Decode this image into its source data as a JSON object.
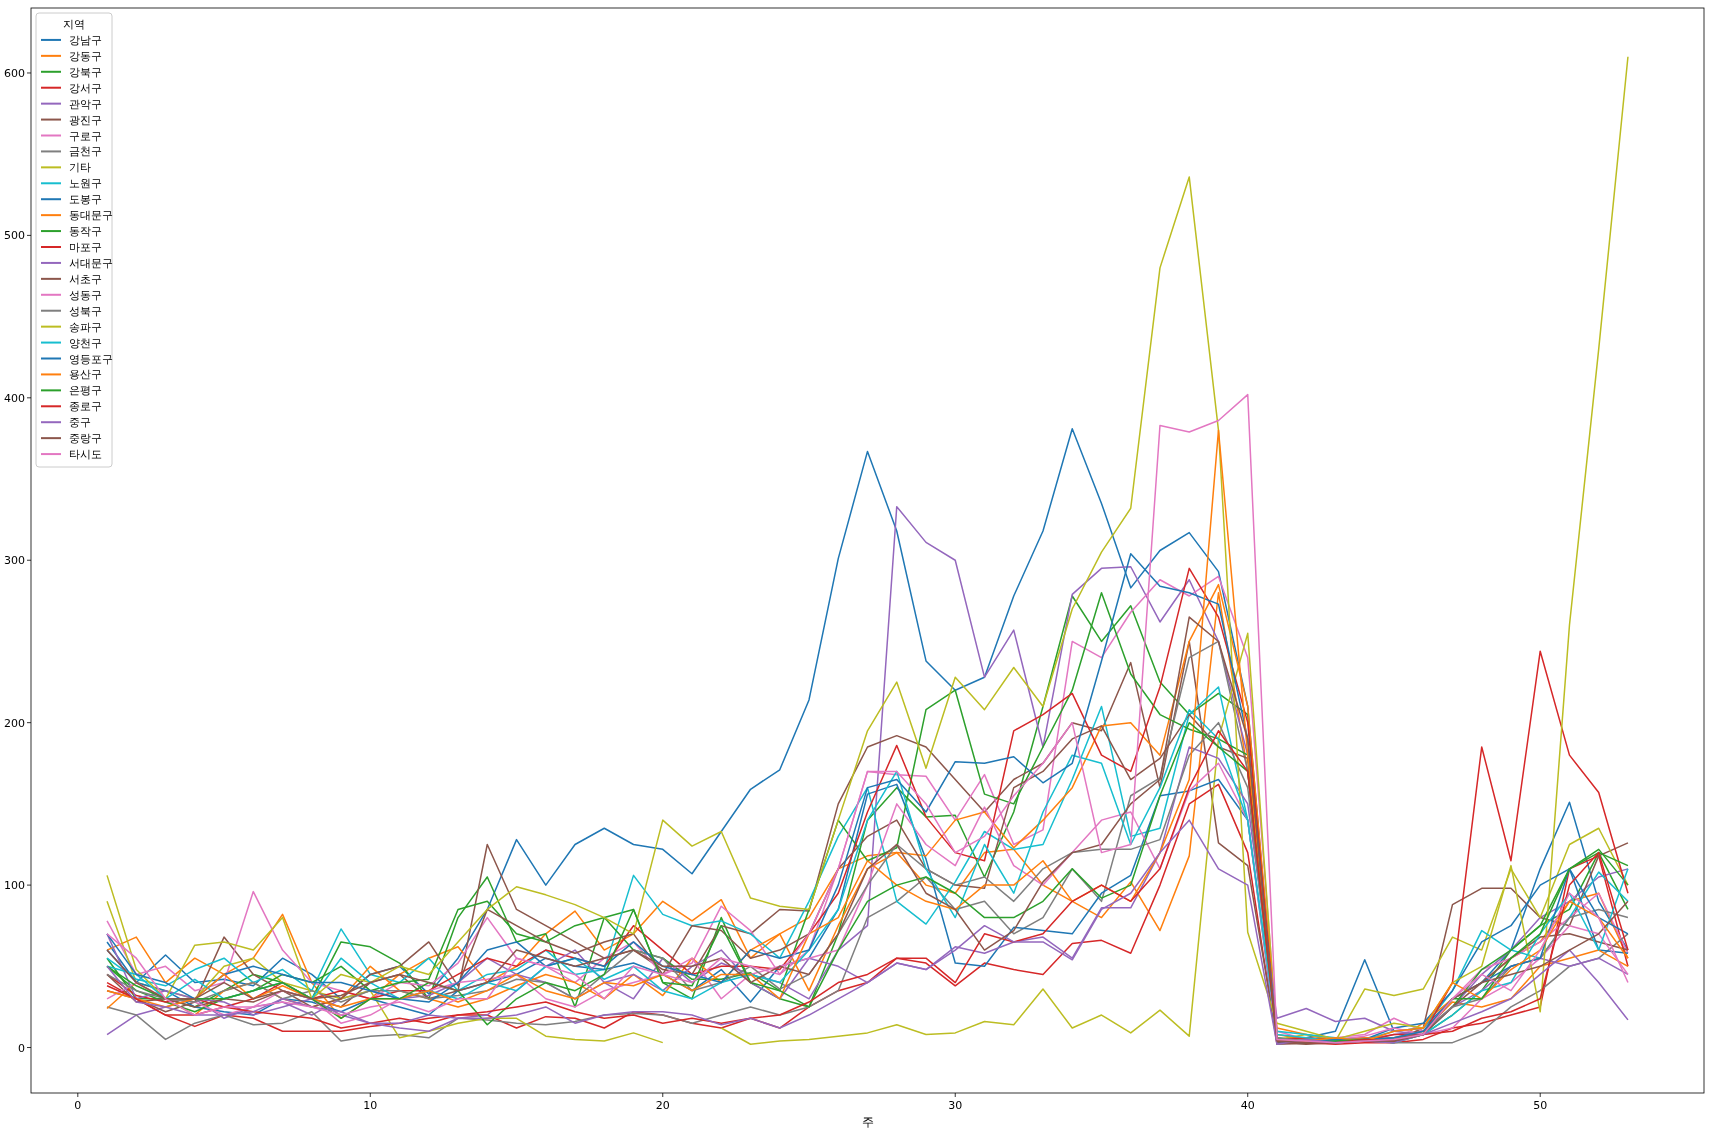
{
  "chart_data": {
    "type": "line",
    "xlabel": "주",
    "legend_title": "지역",
    "legend": "top left",
    "xlim": [
      -1.6,
      55.6
    ],
    "xticks": [
      0,
      10,
      20,
      30,
      40,
      50
    ],
    "ylim": [
      -28,
      640
    ],
    "yticks": [
      0,
      100,
      200,
      300,
      400,
      500,
      600
    ],
    "x": [
      1,
      2,
      3,
      4,
      5,
      6,
      7,
      8,
      9,
      10,
      11,
      12,
      13,
      14,
      15,
      16,
      17,
      18,
      19,
      20,
      21,
      22,
      23,
      24,
      25,
      26,
      27,
      28,
      29,
      30,
      31,
      32,
      33,
      34,
      35,
      36,
      37,
      38,
      39,
      40,
      41,
      42,
      43,
      44,
      45,
      46,
      47,
      48,
      49,
      50,
      51,
      52,
      53
    ],
    "series": [
      {
        "name": "강남구",
        "color": "#1f77b4",
        "values": [
          65,
          40,
          57,
          40,
          42,
          38,
          55,
          45,
          30,
          45,
          50,
          33,
          55,
          85,
          128,
          100,
          125,
          135,
          125,
          122,
          107,
          133,
          159,
          171,
          214,
          301,
          367,
          318,
          238,
          220,
          228,
          278,
          318,
          381,
          335,
          283,
          306,
          317,
          293,
          210,
          5,
          6,
          10,
          54,
          10,
          12,
          30,
          40,
          60,
          110,
          151,
          90,
          60
        ]
      },
      {
        "name": "강동구",
        "color": "#ff7f0e",
        "values": [
          60,
          68,
          40,
          55,
          45,
          55,
          82,
          40,
          18,
          30,
          45,
          55,
          62,
          40,
          50,
          70,
          84,
          60,
          70,
          90,
          78,
          91,
          55,
          70,
          80,
          110,
          118,
          120,
          100,
          95,
          120,
          122,
          100,
          90,
          80,
          102,
          72,
          118,
          280,
          170,
          12,
          8,
          5,
          6,
          4,
          15,
          30,
          40,
          55,
          65,
          90,
          95,
          55
        ]
      },
      {
        "name": "강북구",
        "color": "#2ca02c",
        "values": [
          55,
          30,
          30,
          25,
          35,
          45,
          40,
          30,
          65,
          62,
          52,
          30,
          80,
          105,
          65,
          70,
          25,
          80,
          85,
          40,
          30,
          80,
          40,
          30,
          25,
          70,
          140,
          160,
          142,
          143,
          105,
          145,
          210,
          278,
          250,
          272,
          225,
          205,
          218,
          205,
          6,
          4,
          3,
          5,
          3,
          8,
          20,
          35,
          60,
          75,
          85,
          120,
          85
        ]
      },
      {
        "name": "강서구",
        "color": "#d62728",
        "values": [
          40,
          30,
          20,
          13,
          20,
          18,
          10,
          10,
          10,
          13,
          15,
          18,
          20,
          20,
          12,
          19,
          18,
          12,
          22,
          20,
          15,
          12,
          18,
          12,
          25,
          35,
          40,
          55,
          52,
          38,
          52,
          48,
          45,
          64,
          66,
          58,
          100,
          150,
          162,
          120,
          2,
          3,
          2,
          3,
          3,
          5,
          12,
          15,
          20,
          25,
          110,
          118,
          50
        ]
      },
      {
        "name": "관악구",
        "color": "#9467bd",
        "values": [
          8,
          20,
          25,
          30,
          18,
          25,
          28,
          20,
          30,
          35,
          30,
          32,
          40,
          55,
          45,
          40,
          30,
          40,
          30,
          55,
          40,
          52,
          45,
          40,
          30,
          60,
          75,
          333,
          311,
          300,
          228,
          257,
          185,
          279,
          295,
          296,
          262,
          288,
          250,
          180,
          3,
          5,
          3,
          5,
          8,
          10,
          25,
          45,
          60,
          80,
          90,
          105,
          110
        ]
      },
      {
        "name": "광진구",
        "color": "#8c564b",
        "values": [
          35,
          30,
          22,
          28,
          68,
          45,
          35,
          30,
          25,
          40,
          45,
          30,
          35,
          125,
          85,
          75,
          65,
          55,
          60,
          48,
          45,
          75,
          70,
          85,
          84,
          150,
          185,
          192,
          185,
          165,
          145,
          165,
          175,
          200,
          195,
          237,
          160,
          250,
          126,
          112,
          5,
          6,
          4,
          6,
          4,
          12,
          88,
          98,
          98,
          80,
          75,
          118,
          126
        ]
      },
      {
        "name": "구로구",
        "color": "#e377c2",
        "values": [
          78,
          45,
          50,
          35,
          40,
          96,
          60,
          40,
          35,
          30,
          40,
          38,
          52,
          80,
          55,
          50,
          40,
          55,
          65,
          45,
          52,
          87,
          72,
          45,
          60,
          110,
          170,
          168,
          167,
          140,
          168,
          125,
          134,
          250,
          240,
          268,
          288,
          278,
          290,
          240,
          10,
          5,
          6,
          8,
          18,
          10,
          30,
          48,
          55,
          65,
          80,
          95,
          58
        ]
      },
      {
        "name": "금천구",
        "color": "#7f7f7f",
        "values": [
          25,
          20,
          5,
          15,
          20,
          14,
          15,
          22,
          4,
          7,
          8,
          6,
          18,
          17,
          15,
          14,
          16,
          20,
          21,
          20,
          15,
          20,
          25,
          20,
          25,
          35,
          80,
          90,
          105,
          85,
          90,
          70,
          80,
          110,
          90,
          155,
          166,
          240,
          250,
          170,
          2,
          3,
          3,
          4,
          3,
          3,
          3,
          10,
          25,
          35,
          50,
          55,
          70
        ]
      },
      {
        "name": "기타",
        "color": "#bcbd22",
        "values": [
          90,
          40,
          35,
          30,
          50,
          55,
          40,
          35,
          30,
          35,
          6,
          10,
          15,
          18,
          18,
          7,
          5,
          4,
          9,
          3,
          null,
          12,
          2,
          4,
          5,
          7,
          9,
          14,
          8,
          9,
          16,
          14,
          36,
          12,
          20,
          9,
          23,
          7,
          190,
          255,
          5,
          8,
          4,
          36,
          32,
          36,
          68,
          60,
          110,
          80,
          125,
          135,
          100
        ]
      },
      {
        "name": "노원구",
        "color": "#17becf",
        "values": [
          55,
          42,
          38,
          48,
          55,
          40,
          48,
          35,
          73,
          45,
          40,
          55,
          35,
          45,
          48,
          60,
          45,
          48,
          106,
          82,
          75,
          78,
          70,
          55,
          90,
          130,
          160,
          90,
          76,
          102,
          133,
          122,
          125,
          165,
          210,
          130,
          135,
          205,
          222,
          140,
          10,
          8,
          6,
          5,
          10,
          12,
          35,
          72,
          60,
          55,
          80,
          108,
          90
        ]
      },
      {
        "name": "도봉구",
        "color": "#1f77b4",
        "values": [
          60,
          40,
          35,
          25,
          22,
          20,
          30,
          28,
          22,
          30,
          25,
          20,
          35,
          40,
          45,
          55,
          50,
          48,
          52,
          45,
          35,
          48,
          28,
          50,
          55,
          85,
          156,
          162,
          116,
          52,
          50,
          74,
          72,
          70,
          95,
          106,
          155,
          158,
          165,
          140,
          3,
          4,
          3,
          5,
          12,
          15,
          35,
          65,
          75,
          100,
          110,
          60,
          58
        ]
      },
      {
        "name": "동대문구",
        "color": "#ff7f0e",
        "values": [
          24,
          40,
          30,
          20,
          35,
          40,
          30,
          25,
          30,
          50,
          35,
          30,
          25,
          30,
          38,
          45,
          40,
          30,
          45,
          32,
          55,
          40,
          60,
          70,
          35,
          75,
          110,
          120,
          118,
          140,
          145,
          123,
          140,
          160,
          198,
          200,
          180,
          250,
          285,
          210,
          8,
          5,
          4,
          6,
          5,
          10,
          28,
          25,
          30,
          50,
          55,
          60,
          50
        ]
      },
      {
        "name": "동작구",
        "color": "#2ca02c",
        "values": [
          50,
          35,
          28,
          22,
          30,
          35,
          45,
          40,
          50,
          35,
          40,
          42,
          85,
          90,
          70,
          65,
          75,
          80,
          60,
          55,
          42,
          42,
          46,
          35,
          85,
          140,
          115,
          123,
          208,
          220,
          156,
          150,
          185,
          220,
          280,
          230,
          205,
          196,
          190,
          180,
          5,
          3,
          4,
          5,
          4,
          8,
          25,
          48,
          60,
          75,
          110,
          122,
          100
        ]
      },
      {
        "name": "마포구",
        "color": "#d62728",
        "values": [
          45,
          32,
          28,
          30,
          25,
          30,
          40,
          30,
          35,
          30,
          35,
          35,
          45,
          55,
          50,
          60,
          55,
          50,
          75,
          60,
          45,
          50,
          50,
          48,
          70,
          95,
          145,
          186,
          142,
          120,
          115,
          195,
          205,
          218,
          180,
          170,
          222,
          295,
          265,
          200,
          5,
          6,
          5,
          4,
          8,
          8,
          40,
          185,
          115,
          244,
          180,
          157,
          95
        ]
      },
      {
        "name": "서대문구",
        "color": "#9467bd",
        "values": [
          70,
          30,
          35,
          30,
          28,
          20,
          25,
          30,
          20,
          15,
          12,
          10,
          18,
          20,
          35,
          50,
          60,
          40,
          45,
          35,
          50,
          60,
          40,
          30,
          55,
          50,
          40,
          52,
          48,
          62,
          58,
          65,
          68,
          55,
          86,
          86,
          120,
          185,
          178,
          150,
          18,
          24,
          16,
          18,
          10,
          8,
          25,
          35,
          50,
          55,
          50,
          55,
          45
        ]
      },
      {
        "name": "서초구",
        "color": "#8c564b",
        "values": [
          45,
          28,
          30,
          25,
          30,
          28,
          35,
          25,
          30,
          45,
          50,
          65,
          38,
          85,
          75,
          65,
          58,
          65,
          70,
          45,
          75,
          72,
          55,
          60,
          70,
          110,
          130,
          140,
          110,
          100,
          98,
          160,
          170,
          190,
          198,
          165,
          178,
          205,
          185,
          178,
          3,
          2,
          3,
          5,
          6,
          8,
          25,
          40,
          55,
          68,
          70,
          65,
          60
        ]
      },
      {
        "name": "성동구",
        "color": "#e377c2",
        "values": [
          30,
          40,
          30,
          28,
          20,
          25,
          35,
          30,
          15,
          20,
          30,
          35,
          40,
          42,
          45,
          30,
          25,
          35,
          40,
          45,
          55,
          30,
          45,
          50,
          55,
          60,
          100,
          150,
          125,
          112,
          148,
          112,
          100,
          120,
          140,
          145,
          110,
          158,
          175,
          140,
          5,
          4,
          5,
          7,
          12,
          8,
          12,
          30,
          40,
          55,
          75,
          70,
          45
        ]
      },
      {
        "name": "성북구",
        "color": "#7f7f7f",
        "values": [
          45,
          35,
          30,
          28,
          35,
          40,
          30,
          35,
          28,
          35,
          35,
          30,
          32,
          35,
          42,
          40,
          30,
          45,
          60,
          55,
          35,
          40,
          50,
          36,
          45,
          70,
          100,
          125,
          110,
          100,
          105,
          90,
          110,
          120,
          122,
          122,
          128,
          180,
          200,
          160,
          6,
          4,
          5,
          4,
          6,
          10,
          25,
          30,
          50,
          55,
          80,
          85,
          80
        ]
      },
      {
        "name": "송파구",
        "color": "#bcbd22",
        "values": [
          106,
          48,
          30,
          63,
          65,
          60,
          80,
          30,
          45,
          40,
          50,
          45,
          65,
          85,
          99,
          94,
          88,
          80,
          70,
          140,
          124,
          133,
          92,
          87,
          85,
          140,
          195,
          225,
          172,
          228,
          208,
          234,
          210,
          270,
          305,
          332,
          480,
          536,
          380,
          71,
          15,
          10,
          5,
          10,
          15,
          12,
          40,
          50,
          112,
          22,
          260,
          430,
          610
        ]
      },
      {
        "name": "양천구",
        "color": "#17becf",
        "values": [
          50,
          45,
          30,
          42,
          30,
          35,
          40,
          30,
          55,
          40,
          30,
          35,
          30,
          40,
          35,
          50,
          55,
          42,
          50,
          35,
          30,
          40,
          45,
          40,
          60,
          85,
          140,
          170,
          110,
          80,
          125,
          95,
          145,
          180,
          175,
          125,
          160,
          208,
          190,
          140,
          8,
          6,
          4,
          5,
          3,
          8,
          20,
          35,
          40,
          70,
          95,
          60,
          110
        ]
      },
      {
        "name": "영등포구",
        "color": "#1f77b4",
        "values": [
          70,
          45,
          40,
          30,
          45,
          50,
          45,
          40,
          40,
          35,
          30,
          28,
          40,
          60,
          65,
          50,
          55,
          50,
          65,
          50,
          45,
          40,
          60,
          55,
          60,
          100,
          160,
          165,
          145,
          176,
          175,
          179,
          163,
          175,
          238,
          304,
          284,
          280,
          273,
          190,
          4,
          3,
          5,
          5,
          6,
          10,
          30,
          40,
          50,
          55,
          110,
          80,
          70
        ]
      },
      {
        "name": "용산구",
        "color": "#ff7f0e",
        "values": [
          35,
          30,
          25,
          30,
          45,
          30,
          38,
          30,
          25,
          30,
          30,
          35,
          28,
          35,
          45,
          35,
          30,
          40,
          38,
          45,
          35,
          45,
          45,
          30,
          70,
          80,
          115,
          100,
          90,
          85,
          100,
          100,
          115,
          90,
          100,
          90,
          120,
          165,
          380,
          180,
          4,
          4,
          6,
          4,
          10,
          12,
          40,
          30,
          48,
          60,
          90,
          80,
          55
        ]
      },
      {
        "name": "은평구",
        "color": "#2ca02c",
        "values": [
          50,
          38,
          30,
          30,
          30,
          35,
          40,
          30,
          18,
          30,
          30,
          40,
          35,
          14,
          30,
          40,
          35,
          45,
          85,
          40,
          38,
          75,
          40,
          35,
          25,
          60,
          90,
          100,
          105,
          95,
          80,
          80,
          90,
          110,
          92,
          100,
          155,
          200,
          185,
          170,
          4,
          3,
          4,
          5,
          4,
          8,
          30,
          30,
          55,
          70,
          110,
          120,
          112
        ]
      },
      {
        "name": "종로구",
        "color": "#d62728",
        "values": [
          38,
          30,
          20,
          20,
          25,
          22,
          20,
          18,
          12,
          15,
          18,
          15,
          20,
          22,
          25,
          28,
          22,
          18,
          20,
          15,
          18,
          15,
          18,
          20,
          28,
          40,
          45,
          55,
          55,
          40,
          70,
          65,
          70,
          90,
          100,
          90,
          110,
          160,
          195,
          170,
          4,
          3,
          3,
          5,
          4,
          8,
          10,
          18,
          22,
          30,
          100,
          120,
          60
        ]
      },
      {
        "name": "중구",
        "color": "#9467bd",
        "values": [
          50,
          28,
          25,
          20,
          20,
          22,
          30,
          25,
          22,
          15,
          15,
          20,
          18,
          18,
          20,
          25,
          15,
          20,
          22,
          22,
          20,
          14,
          18,
          12,
          20,
          30,
          40,
          52,
          48,
          60,
          75,
          65,
          65,
          54,
          85,
          95,
          120,
          140,
          110,
          100,
          2,
          5,
          3,
          4,
          3,
          8,
          15,
          22,
          30,
          45,
          60,
          40,
          17
        ]
      },
      {
        "name": "중랑구",
        "color": "#8c564b",
        "values": [
          60,
          40,
          30,
          30,
          40,
          30,
          35,
          30,
          32,
          40,
          45,
          40,
          35,
          40,
          60,
          55,
          50,
          55,
          60,
          50,
          50,
          55,
          40,
          50,
          45,
          70,
          110,
          125,
          95,
          85,
          60,
          72,
          102,
          120,
          125,
          150,
          165,
          265,
          250,
          190,
          4,
          3,
          3,
          4,
          4,
          8,
          30,
          40,
          45,
          50,
          60,
          70,
          90
        ]
      },
      {
        "name": "타시도",
        "color": "#e377c2",
        "values": [
          70,
          55,
          30,
          20,
          25,
          25,
          28,
          25,
          20,
          25,
          28,
          22,
          30,
          30,
          55,
          50,
          45,
          30,
          50,
          45,
          40,
          55,
          50,
          45,
          70,
          110,
          170,
          170,
          150,
          120,
          130,
          155,
          175,
          200,
          120,
          125,
          383,
          379,
          386,
          402,
          5,
          4,
          3,
          4,
          5,
          8,
          30,
          45,
          35,
          60,
          95,
          80,
          40
        ]
      }
    ]
  }
}
